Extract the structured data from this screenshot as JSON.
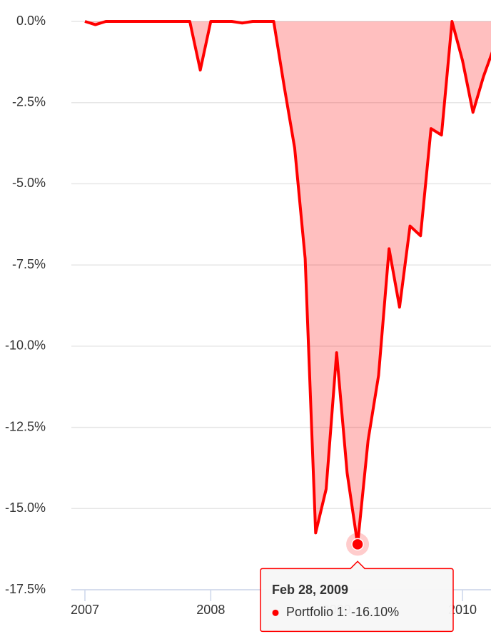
{
  "chart_data": {
    "type": "area",
    "x": [
      2007,
      2007.0833,
      2007.1667,
      2007.25,
      2007.3333,
      2007.4167,
      2007.5,
      2007.5833,
      2007.6667,
      2007.75,
      2007.8333,
      2007.9167,
      2008,
      2008.0833,
      2008.1667,
      2008.25,
      2008.3333,
      2008.4167,
      2008.5,
      2008.5833,
      2008.6667,
      2008.75,
      2008.8333,
      2008.9167,
      2009,
      2009.0833,
      2009.1667,
      2009.25,
      2009.3333,
      2009.4167,
      2009.5,
      2009.5833,
      2009.6667,
      2009.75,
      2009.8333,
      2009.9167,
      2010,
      2010.0833,
      2010.1667,
      2010.25
    ],
    "values": [
      0,
      -0.1,
      0,
      0,
      0,
      0,
      0,
      0,
      0,
      0,
      0,
      -1.5,
      0,
      0,
      0,
      -0.05,
      0,
      0,
      0,
      -2.0,
      -3.9,
      -7.3,
      -15.75,
      -14.4,
      -10.2,
      -13.9,
      -16.1,
      -12.9,
      -10.9,
      -7.0,
      -8.8,
      -6.3,
      -6.6,
      -3.3,
      -3.5,
      0,
      -1.2,
      -2.8,
      -1.7,
      -0.8
    ],
    "color": "#ff0000",
    "xlim": [
      2006.8924,
      2010.2266
    ],
    "xticks": [
      2007,
      2008,
      2009,
      2010
    ],
    "ylim": [
      -17.5,
      0
    ],
    "yticks": [
      {
        "value": 0,
        "label": "0.0%"
      },
      {
        "value": -2.5,
        "label": "-2.5%"
      },
      {
        "value": -5,
        "label": "-5.0%"
      },
      {
        "value": -7.5,
        "label": "-7.5%"
      },
      {
        "value": -10,
        "label": "-10.0%"
      },
      {
        "value": -12.5,
        "label": "-12.5%"
      },
      {
        "value": -15,
        "label": "-15.0%"
      },
      {
        "value": -17.5,
        "label": "-17.5%"
      }
    ],
    "grid": true,
    "tooltip": {
      "title": "Feb 28, 2009",
      "text": "Portfolio 1: -16.10%"
    }
  }
}
